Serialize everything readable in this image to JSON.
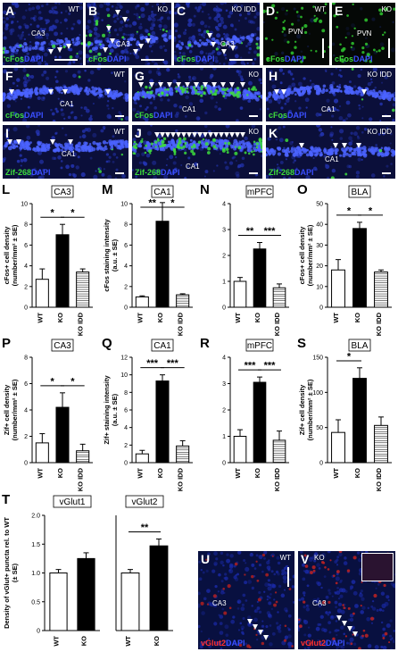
{
  "panels": {
    "A": {
      "letter": "A",
      "tag": "WT",
      "region": "CA3",
      "stain_g": "cFos",
      "stain_b": "DAPI"
    },
    "B": {
      "letter": "B",
      "tag": "KO",
      "region": "CA3",
      "stain_g": "cFos",
      "stain_b": "DAPI"
    },
    "C": {
      "letter": "C",
      "tag": "KO IDD",
      "region": "CA3",
      "stain_g": "cFos",
      "stain_b": "DAPI"
    },
    "D": {
      "letter": "D",
      "tag": "WT",
      "region": "PVN",
      "stain_g": "cFos",
      "stain_b": "DAPI"
    },
    "E": {
      "letter": "E",
      "tag": "KO",
      "region": "PVN",
      "stain_g": "cFos",
      "stain_b": "DAPI"
    },
    "F": {
      "letter": "F",
      "tag": "WT",
      "region": "CA1",
      "stain_g": "cFos",
      "stain_b": "DAPI"
    },
    "G": {
      "letter": "G",
      "tag": "KO",
      "region": "CA1",
      "stain_g": "cFos",
      "stain_b": "DAPI"
    },
    "H": {
      "letter": "H",
      "tag": "KO IDD",
      "region": "CA1",
      "stain_g": "cFos",
      "stain_b": "DAPI"
    },
    "I": {
      "letter": "I",
      "tag": "WT",
      "region": "CA1",
      "stain_g": "Zif-268",
      "stain_b": "DAPI"
    },
    "J": {
      "letter": "J",
      "tag": "KO",
      "region": "CA1",
      "stain_g": "Zif-268",
      "stain_b": "DAPI"
    },
    "K": {
      "letter": "K",
      "tag": "KO IDD",
      "region": "CA1",
      "stain_g": "Zif-268",
      "stain_b": "DAPI"
    },
    "U": {
      "letter": "U",
      "tag": "WT",
      "region": "CA3",
      "stain_r": "vGlut2",
      "stain_b": "DAPI"
    },
    "V": {
      "letter": "V",
      "tag": "KO",
      "region": "CA3",
      "stain_r": "vGlut2",
      "stain_b": "DAPI"
    }
  },
  "colors": {
    "bar_white": "#ffffff",
    "bar_black": "#000000",
    "bar_hatch": "#ffffff",
    "dapi": "#1a2aa8",
    "cfos": "#3ddc3d",
    "vglut": "#ff3030"
  },
  "chart_data": [
    {
      "id": "L",
      "type": "bar",
      "title": "CA3",
      "ylabel": "cFos+ cell density (number/mm² ± SE)",
      "categories": [
        "WT",
        "KO",
        "KO IDD"
      ],
      "values": [
        2.7,
        7.0,
        3.4
      ],
      "errors": [
        1.0,
        1.0,
        0.3
      ],
      "ylim": [
        0,
        10
      ],
      "yticks": [
        0,
        2,
        4,
        6,
        8,
        10
      ],
      "yticklabels": [
        "0",
        "2",
        "4",
        "6",
        "8",
        "10"
      ],
      "sig": [
        {
          "from": 0,
          "to": 1,
          "label": "*"
        },
        {
          "from": 1,
          "to": 2,
          "label": "*"
        }
      ]
    },
    {
      "id": "M",
      "type": "bar",
      "title": "CA1",
      "ylabel": "cFos staining intensity (a.u. ± SE)",
      "categories": [
        "WT",
        "KO",
        "KO IDD"
      ],
      "values": [
        1.0,
        8.3,
        1.2
      ],
      "errors": [
        0.1,
        1.8,
        0.1
      ],
      "ylim": [
        0,
        10
      ],
      "yticks": [
        0,
        2,
        4,
        6,
        8,
        10
      ],
      "yticklabels": [
        "0",
        "2",
        "4",
        "6",
        "8",
        "10"
      ],
      "sig": [
        {
          "from": 0,
          "to": 1,
          "label": "**"
        },
        {
          "from": 1,
          "to": 2,
          "label": "*"
        }
      ]
    },
    {
      "id": "N",
      "type": "bar",
      "title": "mPFC",
      "ylabel": "",
      "categories": [
        "WT",
        "KO",
        "KO IDD"
      ],
      "values": [
        1.0,
        2.25,
        0.75
      ],
      "errors": [
        0.15,
        0.25,
        0.15
      ],
      "ylim": [
        0,
        4
      ],
      "yticks": [
        0,
        1,
        2,
        3,
        4
      ],
      "yticklabels": [
        "0",
        "1",
        "2",
        "3",
        "4"
      ],
      "sig": [
        {
          "from": 0,
          "to": 1,
          "label": "**"
        },
        {
          "from": 1,
          "to": 2,
          "label": "***"
        }
      ]
    },
    {
      "id": "O",
      "type": "bar",
      "title": "BLA",
      "ylabel": "cFos+ cell density (number/mm² ± SE)",
      "categories": [
        "WT",
        "KO",
        "KO IDD"
      ],
      "values": [
        18,
        38,
        17
      ],
      "errors": [
        5,
        3,
        1
      ],
      "ylim": [
        0,
        50
      ],
      "yticks": [
        0,
        10,
        20,
        30,
        40,
        50
      ],
      "yticklabels": [
        "0",
        "10",
        "20",
        "30",
        "40",
        "50"
      ],
      "sig": [
        {
          "from": 0,
          "to": 1,
          "label": "*"
        },
        {
          "from": 1,
          "to": 2,
          "label": "*"
        }
      ]
    },
    {
      "id": "P",
      "type": "bar",
      "title": "CA3",
      "ylabel": "Zif+ cell density (number/mm² ± SE)",
      "categories": [
        "WT",
        "KO",
        "KO IDD"
      ],
      "values": [
        1.5,
        4.2,
        0.9
      ],
      "errors": [
        0.7,
        1.1,
        0.5
      ],
      "ylim": [
        0,
        8
      ],
      "yticks": [
        0,
        2,
        4,
        6,
        8
      ],
      "yticklabels": [
        "0",
        "2",
        "4",
        "6",
        "8"
      ],
      "sig": [
        {
          "from": 0,
          "to": 1,
          "label": "*"
        },
        {
          "from": 1,
          "to": 2,
          "label": "*"
        }
      ]
    },
    {
      "id": "Q",
      "type": "bar",
      "title": "CA1",
      "ylabel": "Zif+ staining intensity (a.u. ± SE)",
      "categories": [
        "WT",
        "KO",
        "KO IDD"
      ],
      "values": [
        1.0,
        9.3,
        1.9
      ],
      "errors": [
        0.4,
        0.7,
        0.6
      ],
      "ylim": [
        0,
        12
      ],
      "yticks": [
        0,
        2,
        4,
        6,
        8,
        10,
        12
      ],
      "yticklabels": [
        "0",
        "2",
        "4",
        "6",
        "8",
        "10",
        "12"
      ],
      "sig": [
        {
          "from": 0,
          "to": 1,
          "label": "***"
        },
        {
          "from": 1,
          "to": 2,
          "label": "***"
        }
      ]
    },
    {
      "id": "R",
      "type": "bar",
      "title": "mPFC",
      "ylabel": "",
      "categories": [
        "WT",
        "KO",
        "KO IDD"
      ],
      "values": [
        1.0,
        3.05,
        0.85
      ],
      "errors": [
        0.25,
        0.2,
        0.35
      ],
      "ylim": [
        0,
        4
      ],
      "yticks": [
        0,
        1,
        2,
        3,
        4
      ],
      "yticklabels": [
        "0",
        "1",
        "2",
        "3",
        "4"
      ],
      "sig": [
        {
          "from": 0,
          "to": 1,
          "label": "***"
        },
        {
          "from": 1,
          "to": 2,
          "label": "***"
        }
      ]
    },
    {
      "id": "S",
      "type": "bar",
      "title": "BLA",
      "ylabel": "Zif+ cell density (number/mm² ± SE)",
      "categories": [
        "WT",
        "KO",
        "KO IDD"
      ],
      "values": [
        43,
        120,
        53
      ],
      "errors": [
        18,
        15,
        12
      ],
      "ylim": [
        0,
        150
      ],
      "yticks": [
        0,
        50,
        100,
        150
      ],
      "yticklabels": [
        "0",
        "50",
        "100",
        "150"
      ],
      "sig": [
        {
          "from": 0,
          "to": 1,
          "label": "*"
        }
      ]
    },
    {
      "id": "T1",
      "type": "bar",
      "title": "vGlut1",
      "ylabel": "Density of vGlut+ puncta rel. to WT (± SE)",
      "categories": [
        "WT",
        "KO"
      ],
      "values": [
        1.0,
        1.25
      ],
      "errors": [
        0.06,
        0.1
      ],
      "ylim": [
        0,
        2
      ],
      "yticks": [
        0,
        0.5,
        1.0,
        1.5,
        2.0
      ],
      "yticklabels": [
        "0",
        "0.5",
        "1.0",
        "1.5",
        "2.0"
      ],
      "sig": []
    },
    {
      "id": "T2",
      "type": "bar",
      "title": "vGlut2",
      "ylabel": "",
      "categories": [
        "WT",
        "KO"
      ],
      "values": [
        1.0,
        1.47
      ],
      "errors": [
        0.06,
        0.12
      ],
      "ylim": [
        0,
        2
      ],
      "yticks": [],
      "yticklabels": [],
      "sig": [
        {
          "from": 0,
          "to": 1,
          "label": "**"
        }
      ]
    }
  ],
  "chart_letters": {
    "L": "L",
    "M": "M",
    "N": "N",
    "O": "O",
    "P": "P",
    "Q": "Q",
    "R": "R",
    "S": "S",
    "T": "T"
  }
}
